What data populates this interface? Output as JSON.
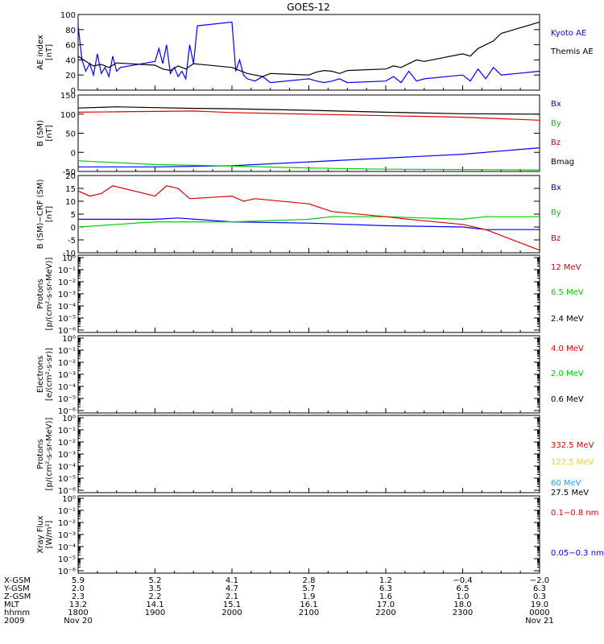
{
  "title": "GOES-12",
  "chart_data": [
    {
      "type": "line",
      "ylabel": [
        "AE index",
        "[nT]"
      ],
      "ylim": [
        0,
        100
      ],
      "ytick_labels": [
        "0",
        "20",
        "40",
        "60",
        "80",
        "100"
      ],
      "xlim": [
        1800,
        2400
      ],
      "series": [
        {
          "name": "Kyoto AE",
          "color": "#0000ff",
          "x": [
            1800,
            1805,
            1810,
            1815,
            1820,
            1825,
            1830,
            1835,
            1840,
            1845,
            1850,
            1855,
            1900,
            1905,
            1910,
            1915,
            1920,
            1925,
            1930,
            1935,
            1940,
            1945,
            1950,
            1955,
            2000,
            2005,
            2010,
            2015,
            2020,
            2030,
            2040,
            2050,
            2100,
            2110,
            2120,
            2130,
            2140,
            2150,
            2200,
            2210,
            2220,
            2230,
            2240,
            2250,
            2300,
            2310,
            2320,
            2330,
            2340,
            2350,
            2400
          ],
          "y": [
            85,
            40,
            25,
            35,
            20,
            48,
            22,
            30,
            18,
            45,
            25,
            30,
            38,
            55,
            35,
            60,
            22,
            30,
            18,
            25,
            15,
            60,
            35,
            85,
            90,
            25,
            40,
            20,
            15,
            12,
            18,
            10,
            15,
            12,
            10,
            12,
            15,
            10,
            12,
            18,
            10,
            25,
            12,
            15,
            20,
            12,
            28,
            15,
            30,
            20,
            25
          ]
        },
        {
          "name": "Themis AE",
          "color": "#000000",
          "x": [
            1800,
            1810,
            1820,
            1830,
            1840,
            1850,
            1900,
            1910,
            1920,
            1930,
            1940,
            1950,
            2000,
            2010,
            2020,
            2030,
            2040,
            2050,
            2100,
            2110,
            2120,
            2130,
            2140,
            2150,
            2200,
            2210,
            2220,
            2230,
            2240,
            2250,
            2300,
            2310,
            2320,
            2330,
            2340,
            2350,
            2400
          ],
          "y": [
            45,
            38,
            32,
            34,
            30,
            36,
            33,
            28,
            26,
            32,
            28,
            35,
            30,
            26,
            22,
            20,
            18,
            22,
            20,
            24,
            26,
            25,
            22,
            26,
            28,
            32,
            30,
            35,
            40,
            38,
            48,
            45,
            55,
            60,
            65,
            75,
            90
          ]
        }
      ]
    },
    {
      "type": "line",
      "ylabel": [
        "B (SM)",
        "[nT]"
      ],
      "ylim": [
        -50,
        150
      ],
      "ytick_labels": [
        "-50",
        "0",
        "50",
        "100",
        "150"
      ],
      "xlim": [
        1800,
        2400
      ],
      "series": [
        {
          "name": "Bx",
          "color": "#0000ff",
          "x": [
            1800,
            1900,
            2000,
            2100,
            2200,
            2300,
            2400
          ],
          "y": [
            -38,
            -38,
            -35,
            -25,
            -15,
            -5,
            12
          ]
        },
        {
          "name": "By",
          "color": "#00cc00",
          "x": [
            1800,
            1900,
            2000,
            2100,
            2200,
            2300,
            2400
          ],
          "y": [
            -22,
            -32,
            -36,
            -41,
            -44,
            -45,
            -46
          ]
        },
        {
          "name": "Bz",
          "color": "#dd0000",
          "x": [
            1800,
            1850,
            1900,
            1950,
            2000,
            2100,
            2200,
            2300,
            2400
          ],
          "y": [
            105,
            106,
            107,
            108,
            104,
            100,
            96,
            92,
            84
          ]
        },
        {
          "name": "Bmag",
          "color": "#000000",
          "x": [
            1800,
            1850,
            1900,
            1950,
            2000,
            2100,
            2200,
            2300,
            2400
          ],
          "y": [
            116,
            119,
            117,
            115,
            114,
            110,
            105,
            101,
            100
          ]
        }
      ]
    },
    {
      "type": "line",
      "ylabel": [
        "B (SM)−CRF (SM)",
        "[nT]"
      ],
      "ylim": [
        -10,
        20
      ],
      "ytick_labels": [
        "-10",
        "-5",
        "0",
        "5",
        "10",
        "15",
        "20"
      ],
      "xlim": [
        1800,
        2400
      ],
      "series": [
        {
          "name": "Bx",
          "color": "#0000ff",
          "x": [
            1800,
            1830,
            1900,
            1930,
            2000,
            2100,
            2200,
            2300,
            2330,
            2400
          ],
          "y": [
            3,
            3,
            3,
            3.5,
            2,
            1.5,
            0.5,
            0,
            -1,
            -1
          ]
        },
        {
          "name": "By",
          "color": "#00cc00",
          "x": [
            1800,
            1850,
            1900,
            2000,
            2100,
            2130,
            2200,
            2300,
            2330,
            2400
          ],
          "y": [
            0,
            1,
            2,
            2,
            3,
            4,
            4,
            3,
            4,
            4
          ]
        },
        {
          "name": "Bz",
          "color": "#dd0000",
          "x": [
            1800,
            1815,
            1830,
            1845,
            1900,
            1915,
            1930,
            1945,
            2000,
            2015,
            2030,
            2100,
            2130,
            2200,
            2230,
            2300,
            2330,
            2400
          ],
          "y": [
            14,
            12,
            13,
            16,
            12,
            16,
            15,
            11,
            12,
            10,
            11,
            9,
            6,
            4,
            3,
            1,
            -1,
            -9
          ]
        }
      ]
    },
    {
      "type": "line",
      "ylabel": [
        "Protons",
        "[p/(cm²-s-sr-MeV)]"
      ],
      "ylim": [
        "10^-6",
        "10^0"
      ],
      "ytick_labels": [
        "10⁰",
        "10⁻¹",
        "10⁻²",
        "10⁻³",
        "10⁻⁴",
        "10⁻⁵",
        "10⁻⁶"
      ],
      "series": [
        {
          "name": "12 MeV",
          "color": "#dd0000"
        },
        {
          "name": "6.5 MeV",
          "color": "#00cc00"
        },
        {
          "name": "2.4 MeV",
          "color": "#000000"
        }
      ]
    },
    {
      "type": "line",
      "ylabel": [
        "Electrons",
        "[e/(cm²-s-sr)]"
      ],
      "ylim": [
        "10^-6",
        "10^0"
      ],
      "ytick_labels": [
        "10⁰",
        "10⁻¹",
        "10⁻²",
        "10⁻³",
        "10⁻⁴",
        "10⁻⁵",
        "10⁻⁶"
      ],
      "series": [
        {
          "name": "4.0 MeV",
          "color": "#dd0000"
        },
        {
          "name": "2.0 MeV",
          "color": "#00cc00"
        },
        {
          "name": "0.6 MeV",
          "color": "#000000"
        }
      ]
    },
    {
      "type": "line",
      "ylabel": [
        "Protons",
        "[p/(cm²-s-sr-MeV)]"
      ],
      "ylim": [
        "10^-6",
        "10^0"
      ],
      "ytick_labels": [
        "10⁰",
        "10⁻¹",
        "10⁻²",
        "10⁻³",
        "10⁻⁴",
        "10⁻⁵",
        "10⁻⁶"
      ],
      "series": [
        {
          "name": "332.5 MeV",
          "color": "#dd0000"
        },
        {
          "name": "122.5 MeV",
          "color": "#e6d800"
        },
        {
          "name": "60 MeV",
          "color": "#00aaee"
        },
        {
          "name": "27.5 MeV",
          "color": "#000000"
        }
      ]
    },
    {
      "type": "line",
      "ylabel": [
        "Xray Flux",
        "[W/m²]"
      ],
      "ylim": [
        "10^-6",
        "10^0"
      ],
      "ytick_labels": [
        "10⁰",
        "10⁻¹",
        "10⁻²",
        "10⁻³",
        "10⁻⁴",
        "10⁻⁵",
        "10⁻⁶"
      ],
      "series": [
        {
          "name": "0.1−0.8 nm",
          "color": "#dd0000"
        },
        {
          "name": "0.05−0.3 nm",
          "color": "#0000ff"
        }
      ]
    }
  ],
  "xaxis": {
    "labels": [
      "X-GSM",
      "Y-GSM",
      "Z-GSM",
      "MLT",
      "hhmm",
      "2009"
    ],
    "columns": [
      [
        "5.9",
        "2.0",
        "2.3",
        "13.2",
        "1800",
        "Nov 20"
      ],
      [
        "5.2",
        "3.5",
        "2.2",
        "14.1",
        "1900",
        ""
      ],
      [
        "4.1",
        "4.7",
        "2.1",
        "15.1",
        "2000",
        ""
      ],
      [
        "2.8",
        "5.7",
        "1.9",
        "16.1",
        "2100",
        ""
      ],
      [
        "1.2",
        "6.3",
        "1.6",
        "17.0",
        "2200",
        ""
      ],
      [
        "−0.4",
        "6.5",
        "1.0",
        "18.0",
        "2300",
        ""
      ],
      [
        "−2.0",
        "6.3",
        "0.3",
        "19.0",
        "0000",
        "Nov 21"
      ]
    ]
  }
}
